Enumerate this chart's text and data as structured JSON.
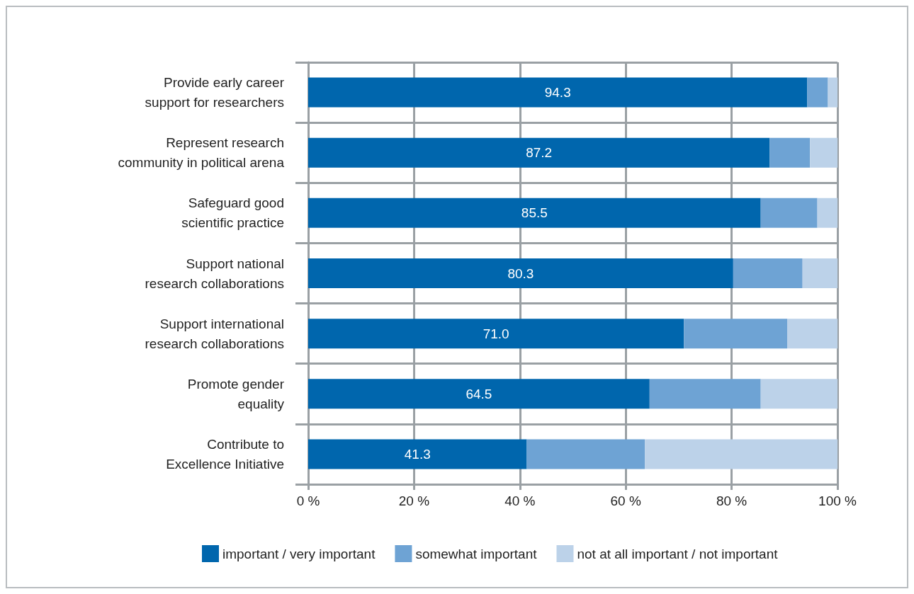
{
  "chart_data": {
    "type": "bar",
    "orientation": "horizontal",
    "stacked": true,
    "categories": [
      "Provide early career\nsupport for researchers",
      "Represent research\ncommunity in political arena",
      "Safeguard good\nscientific practice",
      "Support national\nresearch collaborations",
      "Support international\nresearch collaborations",
      "Promote gender\nequality",
      "Contribute to\nExcellence Initiative"
    ],
    "series": [
      {
        "name": "important / very important",
        "color": "#0066ad",
        "values": [
          94.3,
          87.2,
          85.5,
          80.3,
          71.0,
          64.5,
          41.3
        ],
        "value_labels": [
          "94.3",
          "87.2",
          "85.5",
          "80.3",
          "71.0",
          "64.5",
          "41.3"
        ]
      },
      {
        "name": "somewhat important",
        "color": "#6ea3d4",
        "values": [
          3.9,
          7.6,
          10.7,
          13.1,
          19.5,
          21.0,
          22.3
        ]
      },
      {
        "name": "not at all important / not important",
        "color": "#bcd2e9",
        "values": [
          1.8,
          5.2,
          3.8,
          6.6,
          9.5,
          14.5,
          36.4
        ]
      }
    ],
    "xlim": [
      0,
      100
    ],
    "xticks": [
      {
        "value": 0,
        "label": "0 %"
      },
      {
        "value": 20,
        "label": "20 %"
      },
      {
        "value": 40,
        "label": "40 %"
      },
      {
        "value": 60,
        "label": "60 %"
      },
      {
        "value": 80,
        "label": "80 %"
      },
      {
        "value": 100,
        "label": "100 %"
      }
    ],
    "grid": true,
    "legend": "bottom"
  }
}
